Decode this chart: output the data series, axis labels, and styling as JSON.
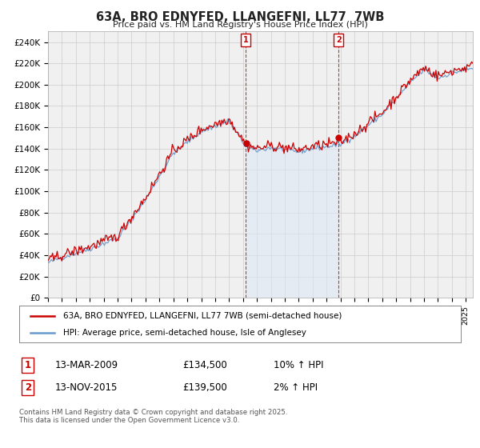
{
  "title": "63A, BRO EDNYFED, LLANGEFNI, LL77  7WB",
  "subtitle": "Price paid vs. HM Land Registry's House Price Index (HPI)",
  "ylabel_ticks": [
    "£0",
    "£20K",
    "£40K",
    "£60K",
    "£80K",
    "£100K",
    "£120K",
    "£140K",
    "£160K",
    "£180K",
    "£200K",
    "£220K",
    "£240K"
  ],
  "ytick_vals": [
    0,
    20000,
    40000,
    60000,
    80000,
    100000,
    120000,
    140000,
    160000,
    180000,
    200000,
    220000,
    240000
  ],
  "ylim": [
    0,
    250000
  ],
  "xlim_start": 1995.0,
  "xlim_end": 2025.5,
  "red_line_color": "#cc0000",
  "blue_line_color": "#6699cc",
  "blue_fill_color": "#dce8f5",
  "marker1_x": 2009.2,
  "marker2_x": 2015.87,
  "legend_entry1": "63A, BRO EDNYFED, LLANGEFNI, LL77 7WB (semi-detached house)",
  "legend_entry2": "HPI: Average price, semi-detached house, Isle of Anglesey",
  "table_row1": [
    "1",
    "13-MAR-2009",
    "£134,500",
    "10% ↑ HPI"
  ],
  "table_row2": [
    "2",
    "13-NOV-2015",
    "£139,500",
    "2% ↑ HPI"
  ],
  "footer": "Contains HM Land Registry data © Crown copyright and database right 2025.\nThis data is licensed under the Open Government Licence v3.0.",
  "background_color": "#ffffff",
  "plot_bg_color": "#f0f0f0"
}
